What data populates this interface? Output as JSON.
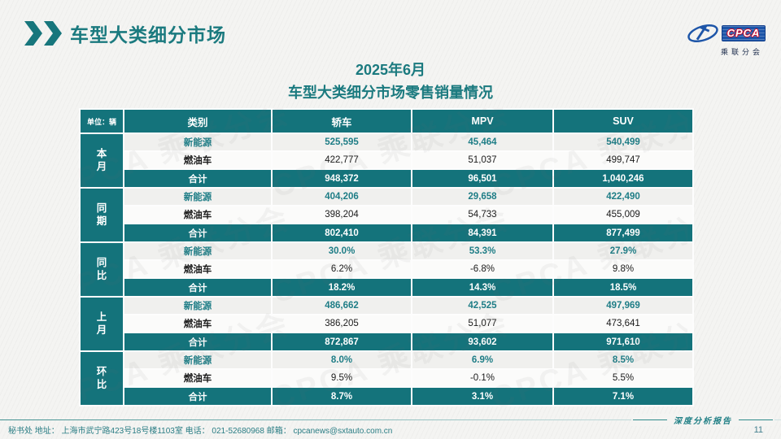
{
  "page": {
    "title": "车型大类细分市场",
    "subtitle_line1": "2025年6月",
    "subtitle_line2": "车型大类细分市场零售销量情况",
    "footer": "秘书处  地址： 上海市武宁路423号18号楼1103室  电话： 021-52680968   邮箱： cpcanews@sxtauto.com.cn",
    "report_badge": "深度分析报告",
    "page_number": "11"
  },
  "logo": {
    "name": "CPCA",
    "subtext": "乘联分会"
  },
  "watermark_text": "CPCA 乘联分会",
  "colors": {
    "teal": "#14737b",
    "title_teal": "#1b7a7f",
    "new_energy_text": "#1e7d86",
    "logo_blue": "#1d55a8"
  },
  "table": {
    "unit_label": "单位：辆",
    "columns": [
      "类别",
      "轿车",
      "MPV",
      "SUV"
    ],
    "groups": [
      {
        "label": "本月",
        "rows": [
          {
            "type": "new-energy",
            "category": "新能源",
            "values": [
              "525,595",
              "45,464",
              "540,499"
            ]
          },
          {
            "type": "fuel",
            "category": "燃油车",
            "values": [
              "422,777",
              "51,037",
              "499,747"
            ]
          },
          {
            "type": "total",
            "category": "合计",
            "values": [
              "948,372",
              "96,501",
              "1,040,246"
            ]
          }
        ]
      },
      {
        "label": "同期",
        "rows": [
          {
            "type": "new-energy",
            "category": "新能源",
            "values": [
              "404,206",
              "29,658",
              "422,490"
            ]
          },
          {
            "type": "fuel",
            "category": "燃油车",
            "values": [
              "398,204",
              "54,733",
              "455,009"
            ]
          },
          {
            "type": "total",
            "category": "合计",
            "values": [
              "802,410",
              "84,391",
              "877,499"
            ]
          }
        ]
      },
      {
        "label": "同比",
        "rows": [
          {
            "type": "new-energy",
            "category": "新能源",
            "values": [
              "30.0%",
              "53.3%",
              "27.9%"
            ]
          },
          {
            "type": "fuel",
            "category": "燃油车",
            "values": [
              "6.2%",
              "-6.8%",
              "9.8%"
            ]
          },
          {
            "type": "total",
            "category": "合计",
            "values": [
              "18.2%",
              "14.3%",
              "18.5%"
            ]
          }
        ]
      },
      {
        "label": "上月",
        "rows": [
          {
            "type": "new-energy",
            "category": "新能源",
            "values": [
              "486,662",
              "42,525",
              "497,969"
            ]
          },
          {
            "type": "fuel",
            "category": "燃油车",
            "values": [
              "386,205",
              "51,077",
              "473,641"
            ]
          },
          {
            "type": "total",
            "category": "合计",
            "values": [
              "872,867",
              "93,602",
              "971,610"
            ]
          }
        ]
      },
      {
        "label": "环比",
        "rows": [
          {
            "type": "new-energy",
            "category": "新能源",
            "values": [
              "8.0%",
              "6.9%",
              "8.5%"
            ]
          },
          {
            "type": "fuel",
            "category": "燃油车",
            "values": [
              "9.5%",
              "-0.1%",
              "5.5%"
            ]
          },
          {
            "type": "total",
            "category": "合计",
            "values": [
              "8.7%",
              "3.1%",
              "7.1%"
            ]
          }
        ]
      }
    ]
  }
}
